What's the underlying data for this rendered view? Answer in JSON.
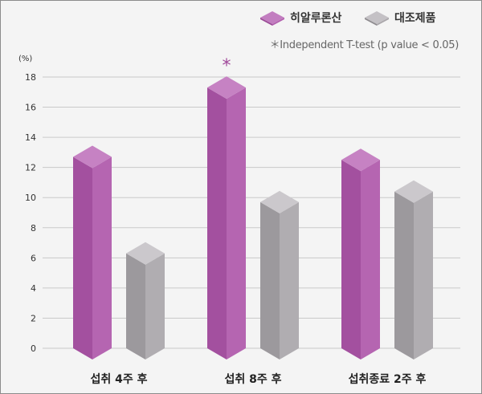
{
  "chart_data": {
    "type": "bar",
    "categories": [
      "섭취 4주 후",
      "섭취 8주 후",
      "섭취종료 2주 후"
    ],
    "series": [
      {
        "name": "히알루론산",
        "values": [
          12.7,
          17.3,
          12.5
        ],
        "color": "#b25fae"
      },
      {
        "name": "대조제품",
        "values": [
          6.3,
          9.7,
          10.4
        ],
        "color": "#a9a6aa"
      }
    ],
    "ylabel": "(%)",
    "ylim": [
      0,
      18
    ],
    "yticks": [
      0,
      2,
      4,
      6,
      8,
      10,
      12,
      14,
      16,
      18
    ],
    "grid": true,
    "legend_position": "top-right",
    "annotation": "＊Independent T-test (p value < 0.05)",
    "significance_marker": "*",
    "significant_category": "섭취 8주 후"
  }
}
